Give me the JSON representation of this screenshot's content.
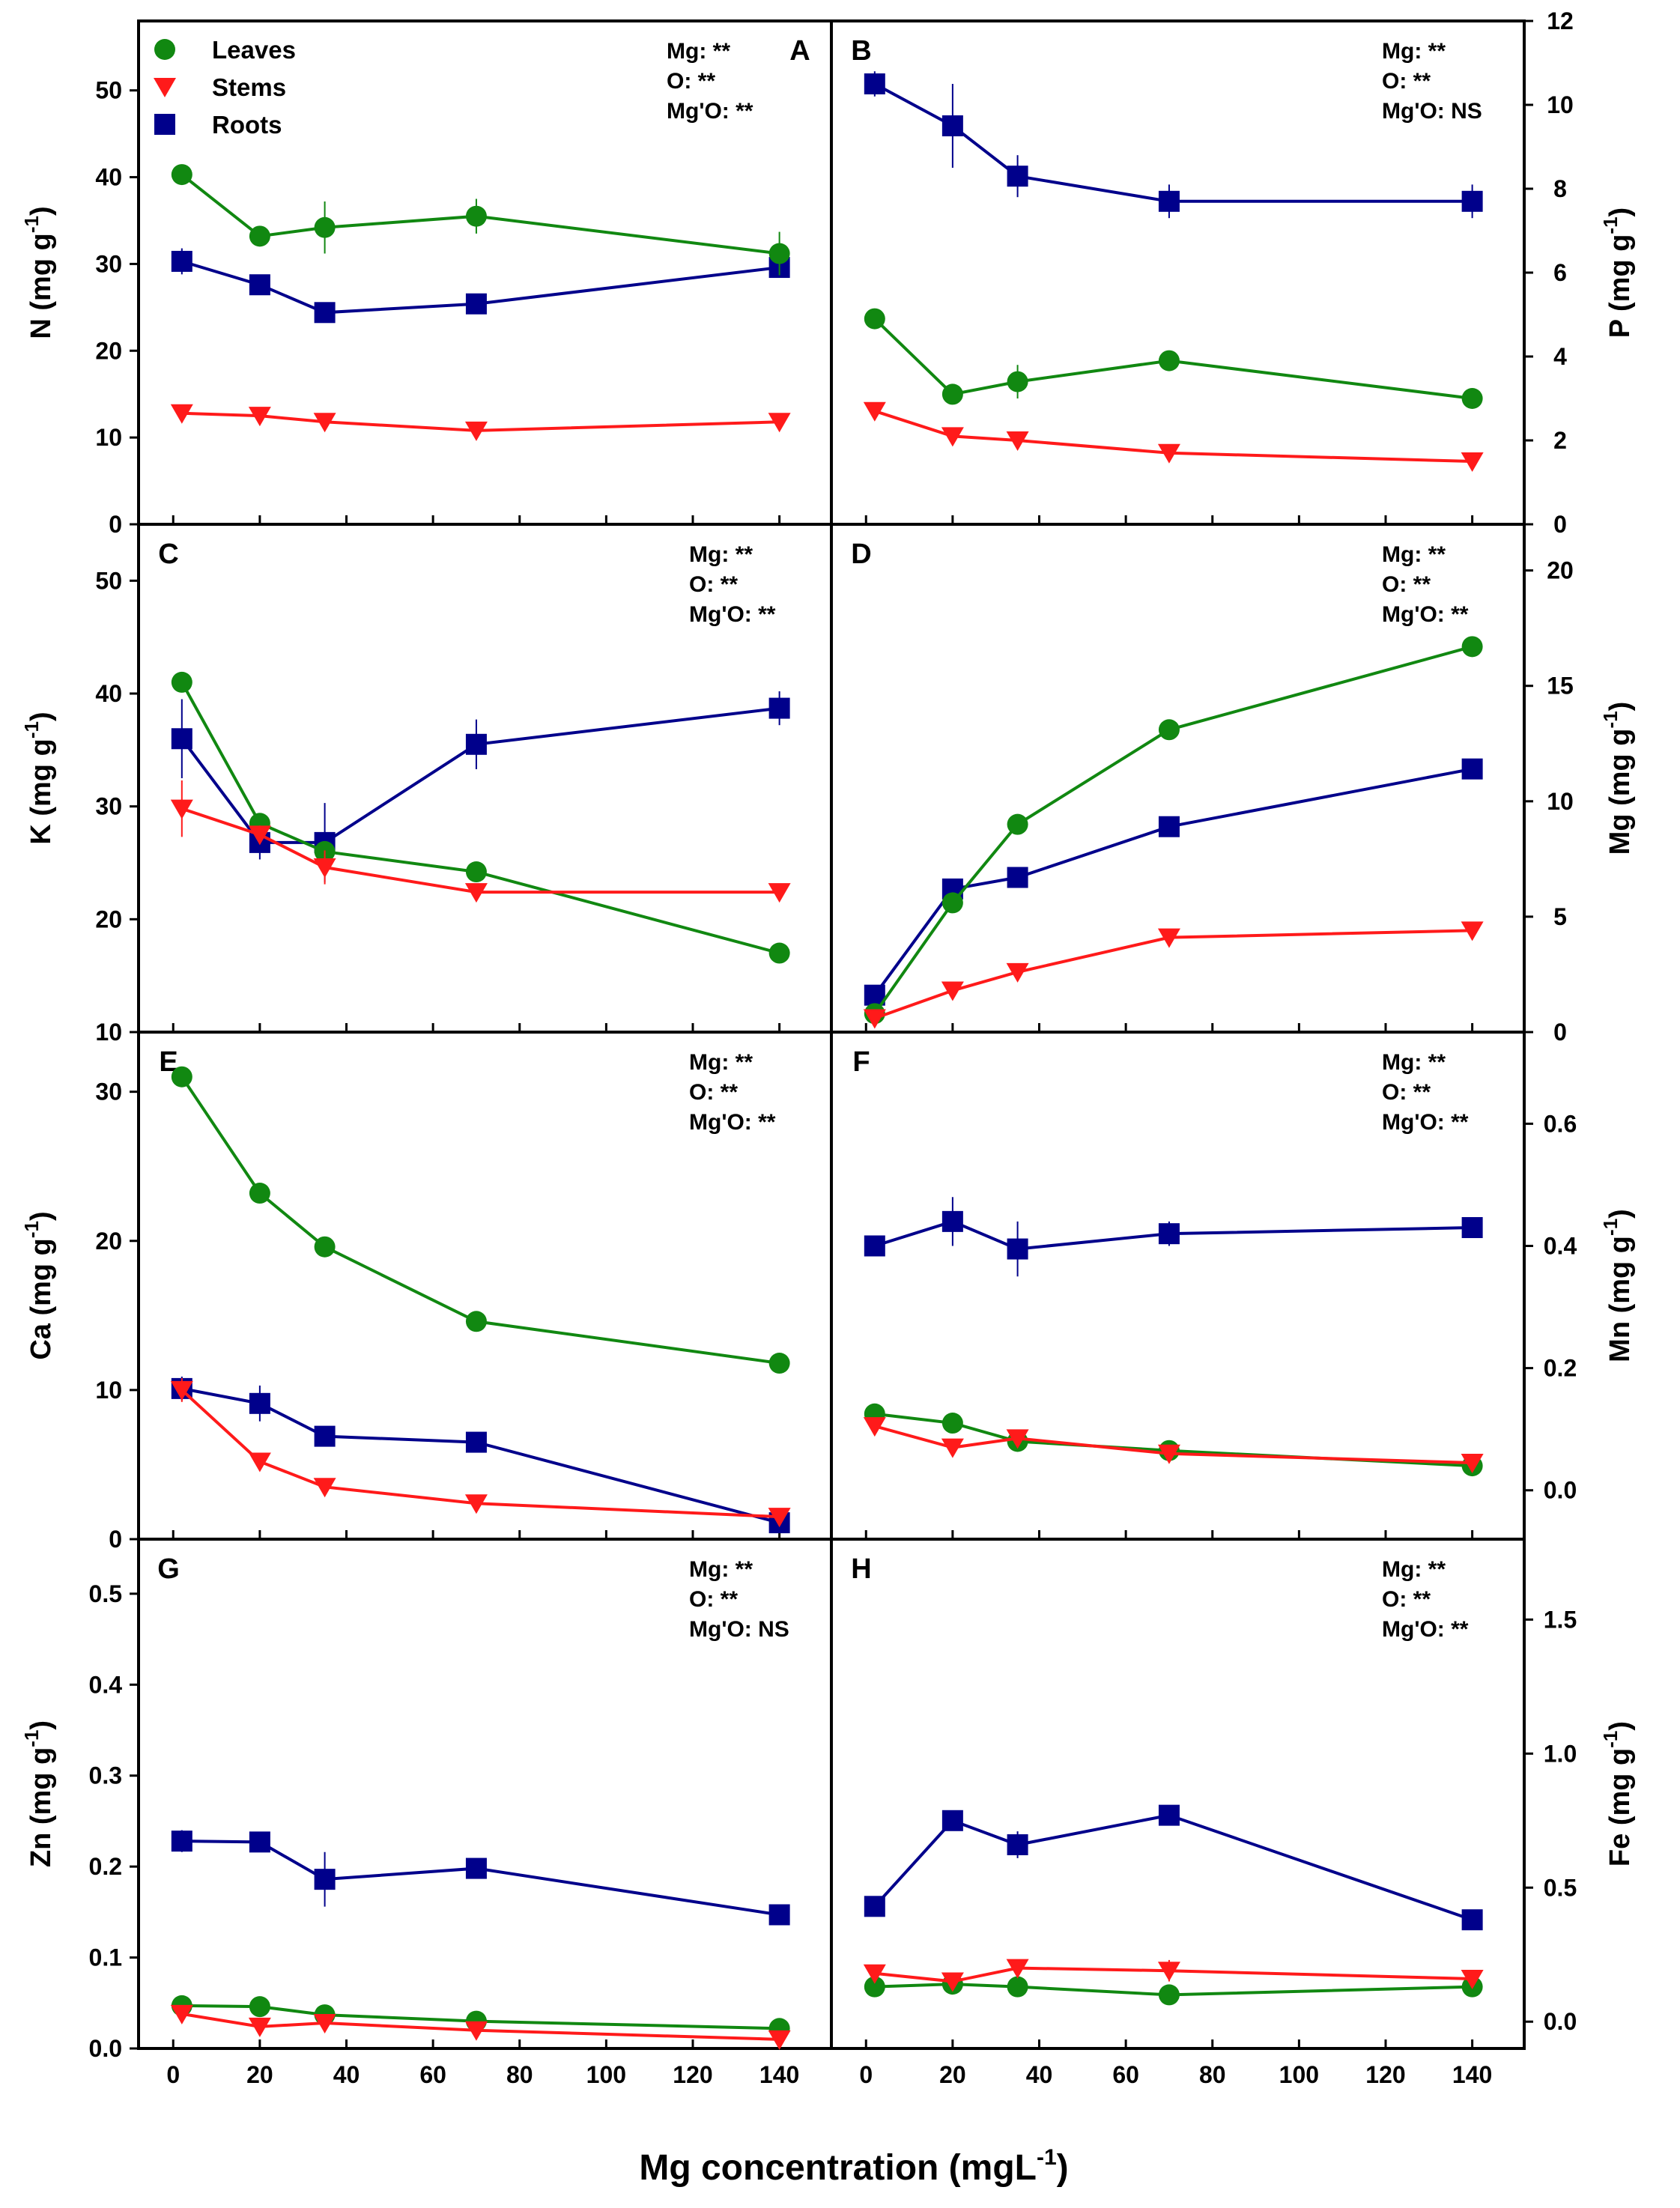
{
  "chart_data": [
    {
      "panel": "A",
      "type": "line",
      "ylabel": "N (mg g-1)",
      "ylim": [
        0,
        58
      ],
      "yticks": [
        0,
        10,
        20,
        30,
        40,
        50
      ],
      "y_axis_side": "left",
      "x": [
        2,
        20,
        35,
        70,
        140
      ],
      "stats": [
        "Mg: **",
        "O: **",
        "Mg'O: **"
      ],
      "series": [
        {
          "name": "Leaves",
          "values": [
            40.3,
            33.2,
            34.2,
            35.5,
            31.2
          ],
          "errors": [
            1.0,
            0.8,
            3.0,
            2.0,
            2.5
          ]
        },
        {
          "name": "Stems",
          "values": [
            12.8,
            12.5,
            11.8,
            10.8,
            11.8
          ],
          "errors": [
            0.5,
            0.5,
            0.5,
            0.5,
            0.5
          ]
        },
        {
          "name": "Roots",
          "values": [
            30.3,
            27.6,
            24.4,
            25.4,
            29.6
          ],
          "errors": [
            1.5,
            0.8,
            1.0,
            0.8,
            1.2
          ]
        }
      ]
    },
    {
      "panel": "B",
      "type": "line",
      "ylabel": "P (mg g-1)",
      "ylim": [
        0,
        12
      ],
      "yticks": [
        0,
        2,
        4,
        6,
        8,
        10,
        12
      ],
      "y_axis_side": "right",
      "x": [
        2,
        20,
        35,
        70,
        140
      ],
      "stats": [
        "Mg: **",
        "O: **",
        "Mg'O: NS"
      ],
      "series": [
        {
          "name": "Leaves",
          "values": [
            4.9,
            3.1,
            3.4,
            3.9,
            3.0
          ],
          "errors": [
            0.2,
            0.2,
            0.4,
            0.2,
            0.2
          ]
        },
        {
          "name": "Stems",
          "values": [
            2.7,
            2.1,
            2.0,
            1.7,
            1.5
          ],
          "errors": [
            0.1,
            0.1,
            0.1,
            0.1,
            0.1
          ]
        },
        {
          "name": "Roots",
          "values": [
            10.5,
            9.5,
            8.3,
            7.7,
            7.7
          ],
          "errors": [
            0.3,
            1.0,
            0.5,
            0.4,
            0.4
          ]
        }
      ]
    },
    {
      "panel": "C",
      "type": "line",
      "ylabel": "K (mg g-1)",
      "ylim": [
        10,
        55
      ],
      "yticks": [
        10,
        20,
        30,
        40,
        50
      ],
      "y_axis_side": "left",
      "x": [
        2,
        20,
        35,
        70,
        140
      ],
      "stats": [
        "Mg: **",
        "O: **",
        "Mg'O: **"
      ],
      "series": [
        {
          "name": "Leaves",
          "values": [
            41.0,
            28.5,
            26.0,
            24.2,
            17.0
          ],
          "errors": [
            0.8,
            0.8,
            0.8,
            0.8,
            0.8
          ]
        },
        {
          "name": "Stems",
          "values": [
            29.8,
            27.5,
            24.6,
            22.4,
            22.4
          ],
          "errors": [
            2.5,
            0.8,
            1.5,
            0.5,
            0.5
          ]
        },
        {
          "name": "Roots",
          "values": [
            36.0,
            26.8,
            26.8,
            35.5,
            38.7
          ],
          "errors": [
            3.5,
            1.5,
            3.5,
            2.2,
            1.5
          ]
        }
      ]
    },
    {
      "panel": "D",
      "type": "line",
      "ylabel": "Mg (mg g-1)",
      "ylim": [
        0,
        22
      ],
      "yticks": [
        0,
        5,
        10,
        15,
        20
      ],
      "y_axis_side": "right",
      "x": [
        2,
        20,
        35,
        70,
        140
      ],
      "stats": [
        "Mg: **",
        "O: **",
        "Mg'O: **"
      ],
      "series": [
        {
          "name": "Leaves",
          "values": [
            0.8,
            5.6,
            9.0,
            13.1,
            16.7
          ],
          "errors": [
            0.2,
            0.3,
            0.3,
            0.3,
            0.3
          ]
        },
        {
          "name": "Stems",
          "values": [
            0.6,
            1.8,
            2.6,
            4.1,
            4.4
          ],
          "errors": [
            0.2,
            0.2,
            0.2,
            0.3,
            0.2
          ]
        },
        {
          "name": "Roots",
          "values": [
            1.6,
            6.2,
            6.7,
            8.9,
            11.4
          ],
          "errors": [
            0.2,
            0.3,
            0.4,
            0.3,
            0.3
          ]
        }
      ]
    },
    {
      "panel": "E",
      "type": "line",
      "ylabel": "Ca (mg g-1)",
      "ylim": [
        0,
        34
      ],
      "yticks": [
        0,
        10,
        20,
        30
      ],
      "y_axis_side": "left",
      "x": [
        2,
        20,
        35,
        70,
        140
      ],
      "stats": [
        "Mg: **",
        "O: **",
        "Mg'O: **"
      ],
      "series": [
        {
          "name": "Leaves",
          "values": [
            31.0,
            23.2,
            19.6,
            14.6,
            11.8
          ],
          "errors": [
            0.5,
            0.5,
            0.5,
            0.5,
            0.5
          ]
        },
        {
          "name": "Stems",
          "values": [
            10.0,
            5.2,
            3.5,
            2.4,
            1.5
          ],
          "errors": [
            0.8,
            0.5,
            0.4,
            0.3,
            0.3
          ]
        },
        {
          "name": "Roots",
          "values": [
            10.1,
            9.1,
            6.9,
            6.5,
            1.1
          ],
          "errors": [
            0.8,
            1.2,
            0.6,
            0.5,
            0.4
          ]
        }
      ]
    },
    {
      "panel": "F",
      "type": "line",
      "ylabel": "Mn (mg g-1)",
      "ylim": [
        -0.08,
        0.75
      ],
      "yticks": [
        0.0,
        0.2,
        0.4,
        0.6
      ],
      "y_axis_side": "right",
      "x": [
        2,
        20,
        35,
        70,
        140
      ],
      "stats": [
        "Mg: **",
        "O: **",
        "Mg'O: **"
      ],
      "series": [
        {
          "name": "Leaves",
          "values": [
            0.125,
            0.11,
            0.08,
            0.065,
            0.04
          ],
          "errors": [
            0.01,
            0.01,
            0.01,
            0.01,
            0.01
          ]
        },
        {
          "name": "Stems",
          "values": [
            0.105,
            0.07,
            0.085,
            0.06,
            0.045
          ],
          "errors": [
            0.01,
            0.01,
            0.01,
            0.01,
            0.01
          ]
        },
        {
          "name": "Roots",
          "values": [
            0.4,
            0.44,
            0.395,
            0.42,
            0.43
          ],
          "errors": [
            0.015,
            0.04,
            0.045,
            0.02,
            0.015
          ]
        }
      ]
    },
    {
      "panel": "G",
      "type": "line",
      "ylabel": "Zn (mg g-1)",
      "ylim": [
        0,
        0.56
      ],
      "yticks": [
        0.0,
        0.1,
        0.2,
        0.3,
        0.4,
        0.5
      ],
      "y_axis_side": "left",
      "x": [
        2,
        20,
        35,
        70,
        140
      ],
      "stats": [
        "Mg: **",
        "O: **",
        "Mg'O: NS"
      ],
      "series": [
        {
          "name": "Leaves",
          "values": [
            0.047,
            0.046,
            0.037,
            0.03,
            0.022
          ],
          "errors": [
            0.005,
            0.005,
            0.005,
            0.005,
            0.005
          ]
        },
        {
          "name": "Stems",
          "values": [
            0.038,
            0.024,
            0.028,
            0.02,
            0.01
          ],
          "errors": [
            0.005,
            0.005,
            0.005,
            0.005,
            0.005
          ]
        },
        {
          "name": "Roots",
          "values": [
            0.228,
            0.227,
            0.186,
            0.198,
            0.147
          ],
          "errors": [
            0.012,
            0.01,
            0.03,
            0.01,
            0.01
          ]
        }
      ]
    },
    {
      "panel": "H",
      "type": "line",
      "ylabel": "Fe (mg g-1)",
      "ylim": [
        -0.1,
        1.8
      ],
      "yticks": [
        0.0,
        0.5,
        1.0,
        1.5
      ],
      "y_axis_side": "right",
      "x": [
        2,
        20,
        35,
        70,
        140
      ],
      "stats": [
        "Mg: **",
        "O: **",
        "Mg'O: **"
      ],
      "series": [
        {
          "name": "Leaves",
          "values": [
            0.13,
            0.14,
            0.13,
            0.1,
            0.13
          ],
          "errors": [
            0.02,
            0.02,
            0.02,
            0.02,
            0.02
          ]
        },
        {
          "name": "Stems",
          "values": [
            0.18,
            0.15,
            0.2,
            0.19,
            0.16
          ],
          "errors": [
            0.02,
            0.02,
            0.02,
            0.04,
            0.02
          ]
        },
        {
          "name": "Roots",
          "values": [
            0.43,
            0.75,
            0.66,
            0.77,
            0.38
          ],
          "errors": [
            0.03,
            0.03,
            0.05,
            0.03,
            0.03
          ]
        }
      ]
    }
  ],
  "x_axis": {
    "label_prefix": "Mg concentration (mgL",
    "label_exponent": "-1",
    "label_suffix": ")",
    "ticks": [
      0,
      20,
      40,
      60,
      80,
      100,
      120,
      140
    ],
    "xlim": [
      -8,
      152
    ]
  },
  "legend": {
    "items": [
      {
        "name": "Leaves",
        "marker": "circle"
      },
      {
        "name": "Stems",
        "marker": "triangle-down"
      },
      {
        "name": "Roots",
        "marker": "square"
      }
    ]
  },
  "colors": {
    "Leaves": "#118811",
    "Stems": "#ff1a1a",
    "Roots": "#00008b",
    "axes": "#000000"
  }
}
